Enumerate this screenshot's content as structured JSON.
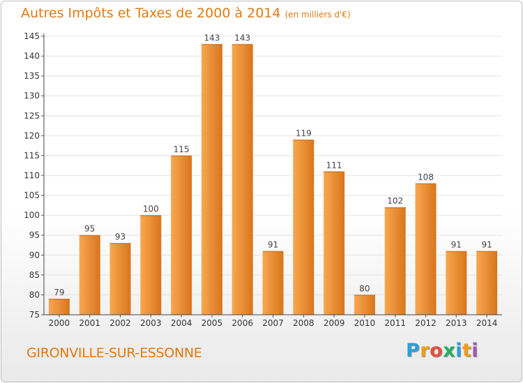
{
  "title": "Autres Impôts et Taxes de 2000 à 2014",
  "subtitle": "(en milliers d'€)",
  "footer": {
    "location": "GIRONVILLE-SUR-ESSONNE"
  },
  "logo": {
    "text": "Proxiti",
    "letters": [
      "P",
      "r",
      "o",
      "x",
      "i",
      "t",
      "i"
    ],
    "colors": [
      "#2a9fd6",
      "#f39c12",
      "#e74c3c",
      "#27ae60",
      "#2a9fd6",
      "#f39c12",
      "#9b59b6"
    ]
  },
  "colors": {
    "title": "#e07a10",
    "bar_light": "#f7a850",
    "bar_dark": "#d9751c",
    "grid": "#e3e3e3"
  },
  "chart_data": {
    "type": "bar",
    "categories": [
      "2000",
      "2001",
      "2002",
      "2003",
      "2004",
      "2005",
      "2006",
      "2007",
      "2008",
      "2009",
      "2010",
      "2011",
      "2012",
      "2013",
      "2014"
    ],
    "values": [
      79,
      95,
      93,
      100,
      115,
      143,
      143,
      91,
      119,
      111,
      80,
      102,
      108,
      91,
      91
    ],
    "title": "Autres Impôts et Taxes de 2000 à 2014",
    "subtitle": "(en milliers d'€)",
    "xlabel": "",
    "ylabel": "",
    "ylim": [
      75,
      145
    ],
    "yticks": [
      75,
      80,
      85,
      90,
      95,
      100,
      105,
      110,
      115,
      120,
      125,
      130,
      135,
      140,
      145
    ],
    "data_labels": true,
    "grid": true,
    "legend": "none"
  }
}
